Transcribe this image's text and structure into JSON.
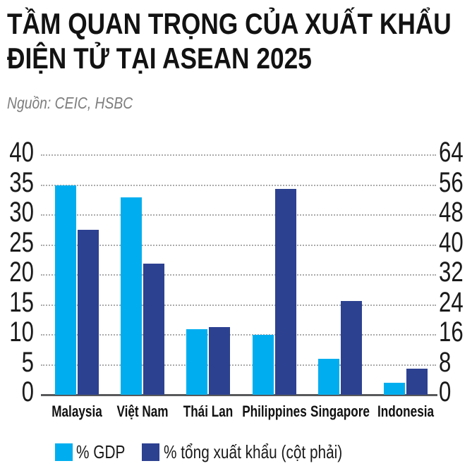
{
  "header": {
    "title_lines": [
      "TẦM QUAN TRỌNG CỦA XUẤT KHẨU",
      "ĐIỆN TỬ TẠI ASEAN 2025"
    ],
    "source": "Nguồn: CEIC, HSBC"
  },
  "colors": {
    "gdp_series": "#00AEEF",
    "exports_series": "#2D4191",
    "gridline": "#ABABAB",
    "axis_line": "#58595B",
    "title_text": "#121212",
    "source_text": "#7D7D7D"
  },
  "chart_data": {
    "type": "bar",
    "title": "TẦM QUAN TRỌNG CỦA XUẤT KHẨU ĐIỆN TỬ TẠI ASEAN 2025",
    "subtitle": "Nguồn: CEIC, HSBC",
    "categories": [
      "Malaysia",
      "Việt Nam",
      "Thái Lan",
      "Philippines",
      "Singapore",
      "Indonesia"
    ],
    "series": [
      {
        "name": "% GDP",
        "axis": "left",
        "color": "#00AEEF",
        "values": [
          35,
          33,
          11,
          10,
          6,
          2
        ]
      },
      {
        "name": "% tổng xuất khẩu (cột phải)",
        "axis": "right",
        "color": "#2D4191",
        "values": [
          44,
          35,
          18,
          55,
          25,
          7
        ]
      }
    ],
    "left_axis": {
      "min": 0,
      "max": 40,
      "ticks": [
        40,
        35,
        30,
        25,
        20,
        15,
        10,
        5,
        0
      ]
    },
    "right_axis": {
      "min": 0,
      "max": 64,
      "ticks": [
        64,
        56,
        48,
        40,
        32,
        24,
        16,
        8,
        0
      ]
    },
    "grid": "horizontal-dotted",
    "legend_position": "bottom"
  }
}
